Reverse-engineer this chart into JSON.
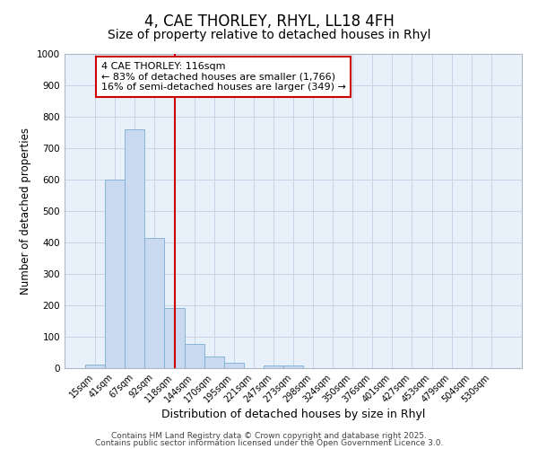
{
  "title": "4, CAE THORLEY, RHYL, LL18 4FH",
  "subtitle": "Size of property relative to detached houses in Rhyl",
  "xlabel": "Distribution of detached houses by size in Rhyl",
  "ylabel": "Number of detached properties",
  "categories": [
    "15sqm",
    "41sqm",
    "67sqm",
    "92sqm",
    "118sqm",
    "144sqm",
    "170sqm",
    "195sqm",
    "221sqm",
    "247sqm",
    "273sqm",
    "298sqm",
    "324sqm",
    "350sqm",
    "376sqm",
    "401sqm",
    "427sqm",
    "453sqm",
    "479sqm",
    "504sqm",
    "530sqm"
  ],
  "values": [
    12,
    600,
    760,
    415,
    192,
    78,
    38,
    18,
    0,
    10,
    10,
    0,
    0,
    0,
    0,
    0,
    0,
    0,
    0,
    0,
    0
  ],
  "bar_color": "#c8d9f0",
  "bar_edge_color": "#7aadd4",
  "vline_x_index": 4,
  "vline_color": "#cc0000",
  "annotation_line1": "4 CAE THORLEY: 116sqm",
  "annotation_line2": "← 83% of detached houses are smaller (1,766)",
  "annotation_line3": "16% of semi-detached houses are larger (349) →",
  "annotation_box_color": "#ffffff",
  "annotation_box_edge": "#cc0000",
  "ylim": [
    0,
    1000
  ],
  "yticks": [
    0,
    100,
    200,
    300,
    400,
    500,
    600,
    700,
    800,
    900,
    1000
  ],
  "grid_color": "#c5d5e8",
  "bg_color": "#e8f0fa",
  "footer1": "Contains HM Land Registry data © Crown copyright and database right 2025.",
  "footer2": "Contains public sector information licensed under the Open Government Licence 3.0.",
  "title_fontsize": 12,
  "subtitle_fontsize": 10,
  "tick_fontsize": 7,
  "xlabel_fontsize": 9,
  "ylabel_fontsize": 8.5,
  "annotation_fontsize": 8,
  "footer_fontsize": 6.5
}
